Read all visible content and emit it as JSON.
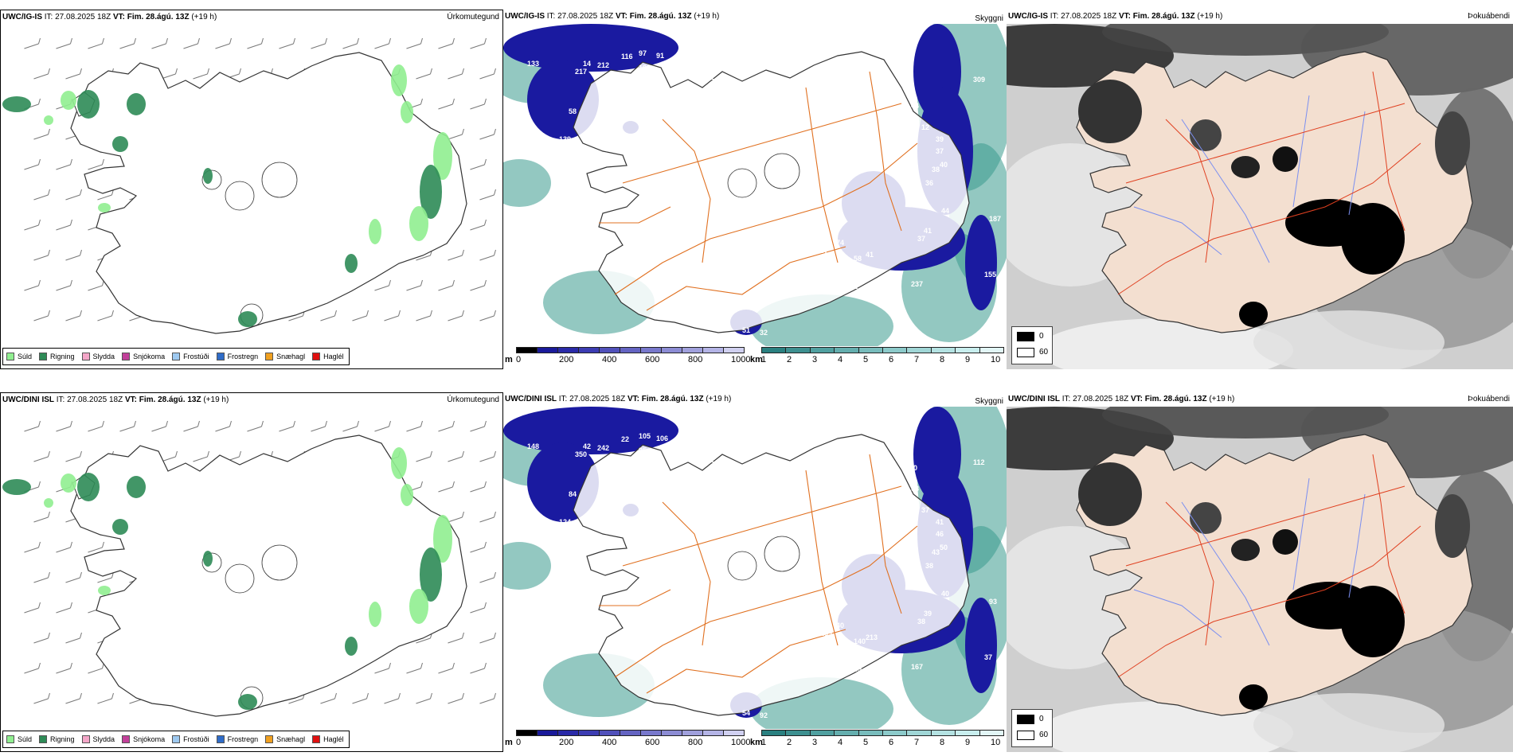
{
  "rows": [
    {
      "model": "UWC/IG-IS",
      "it_label": "IT:",
      "it": "27.08.2025 18Z",
      "vt_label": "VT:",
      "vt": "Fim. 28.ágú. 13Z",
      "lead": "(+19 h)",
      "titles": {
        "precip": "Úrkomutegund",
        "vis": "Skyggni",
        "dew": "Þokuábendi"
      },
      "vis_labels": [
        "133",
        "217",
        "212",
        "116",
        "97",
        "91",
        "104",
        "112",
        "87",
        "77",
        "69",
        "45",
        "38",
        "58",
        "139",
        "12",
        "12",
        "38",
        "44",
        "51",
        "12",
        "43",
        "39",
        "37",
        "38",
        "40",
        "36",
        "41",
        "44",
        "41",
        "37",
        "187",
        "117",
        "79",
        "74",
        "87",
        "58",
        "41",
        "31",
        "237",
        "155",
        "51",
        "32",
        "309",
        "14",
        "106"
      ]
    },
    {
      "model": "UWC/DINI ISL",
      "it_label": "IT:",
      "it": "27.08.2025 18Z",
      "vt_label": "VT:",
      "vt": "Fim. 28.ágú. 13Z",
      "lead": "(+19 h)",
      "titles": {
        "precip": "Úrkomutegund",
        "vis": "Skyggni",
        "dew": "Þokuábendi"
      },
      "vis_labels": [
        "148",
        "350",
        "242",
        "22",
        "105",
        "106",
        "104",
        "102",
        "98",
        "91",
        "101",
        "99",
        "129",
        "84",
        "124",
        "254",
        "175",
        "150",
        "58",
        "44",
        "37",
        "40",
        "41",
        "46",
        "43",
        "50",
        "38",
        "36",
        "40",
        "39",
        "38",
        "93",
        "64",
        "88",
        "40",
        "139",
        "140",
        "213",
        "259",
        "167",
        "37",
        "54",
        "92",
        "112",
        "42",
        "95"
      ]
    }
  ],
  "precip_legend": [
    {
      "name": "Súld",
      "color": "#90ee90"
    },
    {
      "name": "Rigning",
      "color": "#2e8b57"
    },
    {
      "name": "Slydda",
      "color": "#f4a6c8"
    },
    {
      "name": "Snjókoma",
      "color": "#c2409a"
    },
    {
      "name": "Frostúði",
      "color": "#9ec9f0"
    },
    {
      "name": "Frostregn",
      "color": "#2f6cc8"
    },
    {
      "name": "Snæhagl",
      "color": "#f0a020"
    },
    {
      "name": "Haglél",
      "color": "#e01010"
    }
  ],
  "cbar_m": {
    "unit": "m",
    "ticks": [
      "0",
      "200",
      "400",
      "600",
      "800",
      "1000"
    ],
    "colors": [
      "#000000",
      "#1a1a9a",
      "#2a2aa8",
      "#3c3cb2",
      "#5050ba",
      "#6464c2",
      "#7878cc",
      "#8c8cd4",
      "#a0a0dc",
      "#b4b4e6",
      "#d0d0f0"
    ]
  },
  "cbar_km": {
    "unit": "km",
    "ticks": [
      "1",
      "2",
      "3",
      "4",
      "5",
      "6",
      "7",
      "8",
      "9",
      "10"
    ],
    "colors": [
      "#2a8080",
      "#3d9090",
      "#50a0a0",
      "#64aeae",
      "#78bcbc",
      "#8ccaca",
      "#a0d6d6",
      "#b4e2e2",
      "#c8eeee",
      "#e2f6f6"
    ]
  },
  "dew_legend": [
    {
      "value": "0",
      "color": "#000000"
    },
    {
      "value": "60",
      "color": "#ffffff"
    }
  ]
}
